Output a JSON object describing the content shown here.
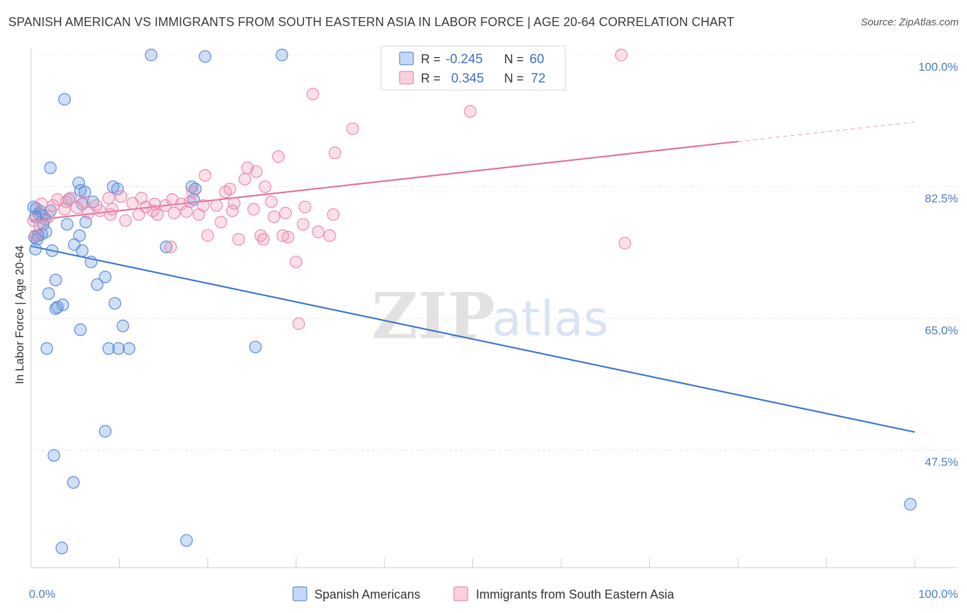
{
  "title": "SPANISH AMERICAN VS IMMIGRANTS FROM SOUTH EASTERN ASIA IN LABOR FORCE | AGE 20-64 CORRELATION CHART",
  "source": "Source: ZipAtlas.com",
  "watermark": {
    "zip": "ZIP",
    "atlas": "atlas"
  },
  "stats_box": {
    "r_label": "R =",
    "n_label": "N =",
    "rows": [
      {
        "series": "Spanish Americans",
        "r": "-0.245",
        "n": "60",
        "color": "#6b9be0"
      },
      {
        "series": "Immigrants from South Eastern Asia",
        "r": "0.345",
        "n": "72",
        "color": "#ef91b0"
      }
    ]
  },
  "chart_data": {
    "type": "scatter",
    "title": "SPANISH AMERICAN VS IMMIGRANTS FROM SOUTH EASTERN ASIA IN LABOR FORCE | AGE 20-64 CORRELATION CHART",
    "xlabel": "",
    "ylabel": "In Labor Force | Age 20-64",
    "xlim": [
      0,
      100
    ],
    "ylim": [
      32,
      102
    ],
    "x_tick_labels": [
      "0.0%",
      "100.0%"
    ],
    "y_ticks": [
      47.5,
      65.0,
      82.5,
      100.0
    ],
    "y_tick_labels": [
      "47.5%",
      "65.0%",
      "82.5%",
      "100.0%"
    ],
    "grid": true,
    "legend_position": "bottom-center",
    "series": [
      {
        "name": "Spanish Americans",
        "color": "#6b9be0",
        "trend": {
          "x": [
            0,
            100
          ],
          "y": [
            74.6,
            49.9
          ]
        },
        "points": [
          [
            13.6,
            100.0
          ],
          [
            19.7,
            99.8
          ],
          [
            28.4,
            100.0
          ],
          [
            3.8,
            94.1
          ],
          [
            2.2,
            85.0
          ],
          [
            5.4,
            83.0
          ],
          [
            5.6,
            82.0
          ],
          [
            6.1,
            81.8
          ],
          [
            9.3,
            82.5
          ],
          [
            9.8,
            82.2
          ],
          [
            18.2,
            82.5
          ],
          [
            5.8,
            80.2
          ],
          [
            4.3,
            80.8
          ],
          [
            7.0,
            80.5
          ],
          [
            0.3,
            79.8
          ],
          [
            0.6,
            79.6
          ],
          [
            0.9,
            78.9
          ],
          [
            1.1,
            79.2
          ],
          [
            1.3,
            78.7
          ],
          [
            1.6,
            78.2
          ],
          [
            2.2,
            79.3
          ],
          [
            0.5,
            78.5
          ],
          [
            1.4,
            77.5
          ],
          [
            4.1,
            77.5
          ],
          [
            6.2,
            77.8
          ],
          [
            1.7,
            76.5
          ],
          [
            1.2,
            76.2
          ],
          [
            0.8,
            76.0
          ],
          [
            0.4,
            75.8
          ],
          [
            0.7,
            75.5
          ],
          [
            5.5,
            76.0
          ],
          [
            4.9,
            74.8
          ],
          [
            15.3,
            74.5
          ],
          [
            0.5,
            74.2
          ],
          [
            2.4,
            74.0
          ],
          [
            5.8,
            74.0
          ],
          [
            6.8,
            72.5
          ],
          [
            8.4,
            70.5
          ],
          [
            2.8,
            70.1
          ],
          [
            7.5,
            69.5
          ],
          [
            2.0,
            68.3
          ],
          [
            3.6,
            66.8
          ],
          [
            3.0,
            66.5
          ],
          [
            9.5,
            67.0
          ],
          [
            2.8,
            66.3
          ],
          [
            10.4,
            64.0
          ],
          [
            5.6,
            63.5
          ],
          [
            1.8,
            61.0
          ],
          [
            8.8,
            61.0
          ],
          [
            9.9,
            61.0
          ],
          [
            11.1,
            61.0
          ],
          [
            25.4,
            61.2
          ],
          [
            18.4,
            80.8
          ],
          [
            18.6,
            82.2
          ],
          [
            8.4,
            50.0
          ],
          [
            2.6,
            46.8
          ],
          [
            4.8,
            43.2
          ],
          [
            99.5,
            40.3
          ],
          [
            3.5,
            34.5
          ],
          [
            17.6,
            35.5
          ]
        ]
      },
      {
        "name": "Immigrants from South Eastern Asia",
        "color": "#ef91b0",
        "trend": {
          "x": [
            0,
            80
          ],
          "y": [
            78.0,
            88.5
          ]
        },
        "trend_extension": {
          "x": [
            80,
            100
          ],
          "y": [
            88.5,
            91.1
          ]
        },
        "points": [
          [
            66.8,
            100.0
          ],
          [
            31.9,
            94.8
          ],
          [
            49.7,
            92.5
          ],
          [
            36.4,
            90.2
          ],
          [
            34.4,
            87.0
          ],
          [
            28.0,
            86.5
          ],
          [
            24.5,
            85.0
          ],
          [
            25.5,
            84.5
          ],
          [
            19.7,
            84.0
          ],
          [
            24.2,
            83.5
          ],
          [
            26.5,
            82.5
          ],
          [
            22.5,
            82.2
          ],
          [
            22.0,
            81.8
          ],
          [
            18.3,
            81.8
          ],
          [
            8.8,
            81.0
          ],
          [
            10.2,
            81.2
          ],
          [
            12.5,
            81.0
          ],
          [
            16.0,
            80.8
          ],
          [
            3.0,
            80.8
          ],
          [
            4.0,
            80.5
          ],
          [
            6.0,
            80.5
          ],
          [
            1.2,
            80.2
          ],
          [
            2.5,
            80.0
          ],
          [
            7.4,
            80.0
          ],
          [
            14.0,
            80.2
          ],
          [
            15.2,
            80.0
          ],
          [
            17.0,
            80.2
          ],
          [
            19.5,
            80.0
          ],
          [
            21.0,
            80.0
          ],
          [
            23.0,
            80.3
          ],
          [
            27.2,
            80.5
          ],
          [
            31.0,
            79.8
          ],
          [
            3.8,
            79.5
          ],
          [
            5.2,
            79.7
          ],
          [
            7.8,
            79.3
          ],
          [
            9.2,
            79.5
          ],
          [
            12.2,
            78.8
          ],
          [
            13.8,
            79.3
          ],
          [
            14.3,
            78.8
          ],
          [
            16.2,
            79.0
          ],
          [
            17.6,
            79.2
          ],
          [
            19.0,
            78.8
          ],
          [
            25.2,
            79.5
          ],
          [
            27.5,
            78.5
          ],
          [
            34.2,
            78.8
          ],
          [
            0.3,
            78.0
          ],
          [
            1.0,
            77.3
          ],
          [
            10.7,
            78.0
          ],
          [
            21.5,
            77.8
          ],
          [
            30.8,
            77.5
          ],
          [
            32.5,
            76.5
          ],
          [
            26.0,
            76.0
          ],
          [
            28.5,
            76.0
          ],
          [
            29.1,
            75.8
          ],
          [
            33.8,
            76.0
          ],
          [
            20.0,
            76.0
          ],
          [
            23.5,
            75.5
          ],
          [
            26.3,
            75.5
          ],
          [
            15.8,
            74.5
          ],
          [
            67.2,
            75.0
          ],
          [
            30.0,
            72.5
          ],
          [
            30.3,
            64.3
          ],
          [
            0.5,
            76.0
          ],
          [
            2.0,
            78.5
          ],
          [
            4.5,
            81.0
          ],
          [
            6.5,
            79.0
          ],
          [
            9.0,
            78.8
          ],
          [
            11.5,
            80.3
          ],
          [
            13.0,
            79.8
          ],
          [
            18.0,
            80.5
          ],
          [
            22.8,
            79.3
          ],
          [
            28.8,
            79.0
          ]
        ]
      }
    ]
  }
}
